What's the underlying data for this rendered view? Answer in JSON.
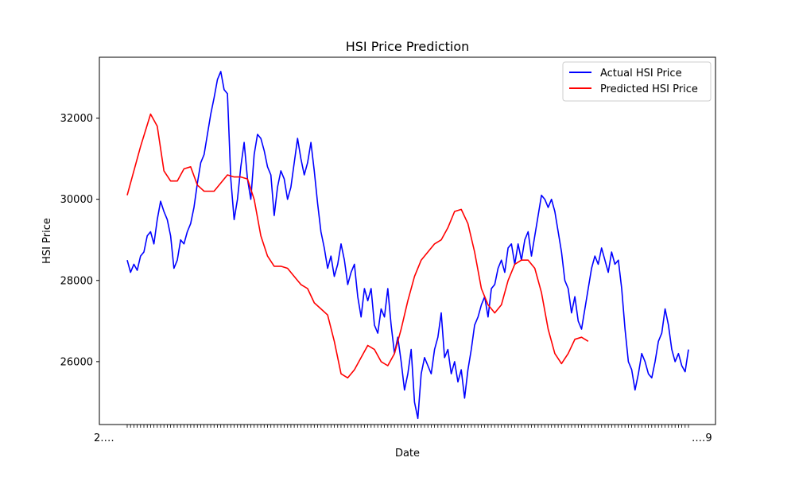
{
  "chart_data": {
    "type": "line",
    "title": "HSI Price Prediction",
    "xlabel": "Date",
    "ylabel": "HSI Price",
    "ylim": [
      24450,
      33500
    ],
    "y_ticks": [
      26000,
      28000,
      30000,
      32000
    ],
    "x_tick_labels_note": "overlapping date tick labels, illegible",
    "legend": {
      "placement": "upper right"
    },
    "grid": false,
    "series": [
      {
        "name": "Actual HSI Price",
        "color": "#0000ff",
        "points": [
          [
            0,
            28500
          ],
          [
            2,
            28200
          ],
          [
            4,
            28400
          ],
          [
            6,
            28250
          ],
          [
            8,
            28600
          ],
          [
            10,
            28700
          ],
          [
            12,
            29100
          ],
          [
            14,
            29200
          ],
          [
            16,
            28900
          ],
          [
            18,
            29500
          ],
          [
            20,
            29950
          ],
          [
            22,
            29700
          ],
          [
            24,
            29500
          ],
          [
            26,
            29100
          ],
          [
            28,
            28300
          ],
          [
            30,
            28500
          ],
          [
            32,
            29000
          ],
          [
            34,
            28900
          ],
          [
            36,
            29200
          ],
          [
            38,
            29400
          ],
          [
            40,
            29800
          ],
          [
            42,
            30400
          ],
          [
            44,
            30900
          ],
          [
            46,
            31100
          ],
          [
            48,
            31600
          ],
          [
            50,
            32100
          ],
          [
            52,
            32500
          ],
          [
            54,
            32950
          ],
          [
            56,
            33150
          ],
          [
            58,
            32700
          ],
          [
            60,
            32600
          ],
          [
            62,
            30500
          ],
          [
            64,
            29500
          ],
          [
            66,
            30000
          ],
          [
            68,
            30800
          ],
          [
            70,
            31400
          ],
          [
            72,
            30500
          ],
          [
            74,
            30000
          ],
          [
            76,
            31100
          ],
          [
            78,
            31600
          ],
          [
            80,
            31500
          ],
          [
            82,
            31200
          ],
          [
            84,
            30800
          ],
          [
            86,
            30600
          ],
          [
            88,
            29600
          ],
          [
            90,
            30300
          ],
          [
            92,
            30700
          ],
          [
            94,
            30500
          ],
          [
            96,
            30000
          ],
          [
            98,
            30300
          ],
          [
            100,
            30900
          ],
          [
            102,
            31500
          ],
          [
            104,
            31000
          ],
          [
            106,
            30600
          ],
          [
            108,
            30900
          ],
          [
            110,
            31400
          ],
          [
            112,
            30700
          ],
          [
            114,
            29900
          ],
          [
            116,
            29200
          ],
          [
            118,
            28800
          ],
          [
            120,
            28300
          ],
          [
            122,
            28600
          ],
          [
            124,
            28100
          ],
          [
            126,
            28400
          ],
          [
            128,
            28900
          ],
          [
            130,
            28500
          ],
          [
            132,
            27900
          ],
          [
            134,
            28200
          ],
          [
            136,
            28400
          ],
          [
            138,
            27600
          ],
          [
            140,
            27100
          ],
          [
            142,
            27800
          ],
          [
            144,
            27500
          ],
          [
            146,
            27800
          ],
          [
            148,
            26900
          ],
          [
            150,
            26700
          ],
          [
            152,
            27300
          ],
          [
            154,
            27100
          ],
          [
            156,
            27800
          ],
          [
            158,
            26900
          ],
          [
            160,
            26200
          ],
          [
            162,
            26600
          ],
          [
            164,
            26000
          ],
          [
            166,
            25300
          ],
          [
            168,
            25700
          ],
          [
            170,
            26300
          ],
          [
            172,
            25000
          ],
          [
            174,
            24600
          ],
          [
            176,
            25700
          ],
          [
            178,
            26100
          ],
          [
            180,
            25900
          ],
          [
            182,
            25700
          ],
          [
            184,
            26300
          ],
          [
            186,
            26600
          ],
          [
            188,
            27200
          ],
          [
            190,
            26100
          ],
          [
            192,
            26300
          ],
          [
            194,
            25700
          ],
          [
            196,
            26000
          ],
          [
            198,
            25500
          ],
          [
            200,
            25800
          ],
          [
            202,
            25100
          ],
          [
            204,
            25800
          ],
          [
            206,
            26300
          ],
          [
            208,
            26900
          ],
          [
            210,
            27100
          ],
          [
            212,
            27400
          ],
          [
            214,
            27600
          ],
          [
            216,
            27100
          ],
          [
            218,
            27800
          ],
          [
            220,
            27900
          ],
          [
            222,
            28300
          ],
          [
            224,
            28500
          ],
          [
            226,
            28200
          ],
          [
            228,
            28800
          ],
          [
            230,
            28900
          ],
          [
            232,
            28400
          ],
          [
            234,
            28900
          ],
          [
            236,
            28500
          ],
          [
            238,
            29000
          ],
          [
            240,
            29200
          ],
          [
            242,
            28600
          ],
          [
            244,
            29100
          ],
          [
            246,
            29600
          ],
          [
            248,
            30100
          ],
          [
            250,
            30000
          ],
          [
            252,
            29800
          ],
          [
            254,
            30000
          ],
          [
            256,
            29700
          ],
          [
            258,
            29200
          ],
          [
            260,
            28700
          ],
          [
            262,
            28000
          ],
          [
            264,
            27800
          ],
          [
            266,
            27200
          ],
          [
            268,
            27600
          ],
          [
            270,
            27000
          ],
          [
            272,
            26800
          ],
          [
            274,
            27300
          ],
          [
            276,
            27800
          ],
          [
            278,
            28300
          ],
          [
            280,
            28600
          ],
          [
            282,
            28400
          ],
          [
            284,
            28800
          ],
          [
            286,
            28500
          ],
          [
            288,
            28200
          ],
          [
            290,
            28700
          ],
          [
            292,
            28400
          ],
          [
            294,
            28500
          ],
          [
            296,
            27800
          ],
          [
            298,
            26800
          ],
          [
            300,
            26000
          ],
          [
            302,
            25800
          ],
          [
            304,
            25300
          ],
          [
            306,
            25700
          ],
          [
            308,
            26200
          ],
          [
            310,
            26000
          ],
          [
            312,
            25700
          ],
          [
            314,
            25600
          ],
          [
            316,
            26000
          ],
          [
            318,
            26500
          ],
          [
            320,
            26700
          ],
          [
            322,
            27300
          ],
          [
            324,
            26900
          ],
          [
            326,
            26300
          ],
          [
            328,
            26000
          ],
          [
            330,
            26200
          ],
          [
            332,
            25900
          ],
          [
            334,
            25750
          ],
          [
            336,
            26300
          ]
        ]
      },
      {
        "name": "Predicted HSI Price",
        "color": "#ff0000",
        "points": [
          [
            0,
            30100
          ],
          [
            8,
            31300
          ],
          [
            14,
            32100
          ],
          [
            18,
            31800
          ],
          [
            22,
            30700
          ],
          [
            26,
            30450
          ],
          [
            30,
            30450
          ],
          [
            34,
            30750
          ],
          [
            38,
            30800
          ],
          [
            42,
            30350
          ],
          [
            46,
            30200
          ],
          [
            52,
            30200
          ],
          [
            56,
            30400
          ],
          [
            60,
            30600
          ],
          [
            64,
            30550
          ],
          [
            68,
            30550
          ],
          [
            72,
            30500
          ],
          [
            76,
            30000
          ],
          [
            80,
            29100
          ],
          [
            84,
            28600
          ],
          [
            88,
            28350
          ],
          [
            92,
            28350
          ],
          [
            96,
            28300
          ],
          [
            100,
            28100
          ],
          [
            104,
            27900
          ],
          [
            108,
            27800
          ],
          [
            112,
            27450
          ],
          [
            116,
            27300
          ],
          [
            120,
            27150
          ],
          [
            124,
            26500
          ],
          [
            128,
            25700
          ],
          [
            132,
            25600
          ],
          [
            136,
            25800
          ],
          [
            140,
            26100
          ],
          [
            144,
            26400
          ],
          [
            148,
            26300
          ],
          [
            152,
            26000
          ],
          [
            156,
            25900
          ],
          [
            160,
            26200
          ],
          [
            164,
            26800
          ],
          [
            168,
            27500
          ],
          [
            172,
            28100
          ],
          [
            176,
            28500
          ],
          [
            180,
            28700
          ],
          [
            184,
            28900
          ],
          [
            188,
            29000
          ],
          [
            192,
            29300
          ],
          [
            196,
            29700
          ],
          [
            200,
            29750
          ],
          [
            204,
            29400
          ],
          [
            208,
            28700
          ],
          [
            212,
            27800
          ],
          [
            216,
            27400
          ],
          [
            220,
            27200
          ],
          [
            224,
            27400
          ],
          [
            228,
            28000
          ],
          [
            232,
            28400
          ],
          [
            236,
            28500
          ],
          [
            240,
            28500
          ],
          [
            244,
            28300
          ],
          [
            248,
            27700
          ],
          [
            252,
            26800
          ],
          [
            256,
            26200
          ],
          [
            260,
            25950
          ],
          [
            264,
            26200
          ],
          [
            268,
            26550
          ],
          [
            272,
            26600
          ],
          [
            276,
            26500
          ]
        ]
      }
    ]
  }
}
